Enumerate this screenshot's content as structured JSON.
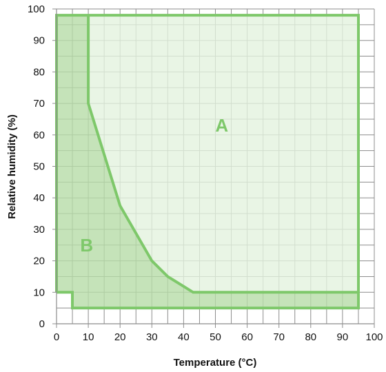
{
  "chart_data": {
    "type": "area",
    "title": "",
    "xlabel": "Temperature (°C)",
    "ylabel": "Relative humidity (%)",
    "xlim": [
      0,
      100
    ],
    "ylim": [
      0,
      100
    ],
    "xticks": [
      0,
      10,
      20,
      30,
      40,
      50,
      60,
      70,
      80,
      90,
      100
    ],
    "yticks": [
      0,
      10,
      20,
      30,
      40,
      50,
      60,
      70,
      80,
      90,
      100
    ],
    "grid": true,
    "minor_grid_step_x": 5,
    "minor_grid_step_y": 5,
    "regions": [
      {
        "name": "A",
        "label": "A",
        "color": "#7ec86a",
        "fill_color": "#e4f3de",
        "outline": [
          [
            0,
            10
          ],
          [
            0,
            98
          ],
          [
            10,
            98
          ],
          [
            10,
            70
          ],
          [
            20,
            37.5
          ],
          [
            30,
            20
          ],
          [
            35,
            15
          ],
          [
            43,
            10
          ],
          [
            95,
            10
          ],
          [
            95,
            98
          ],
          [
            10,
            98
          ]
        ],
        "polygon": [
          [
            10,
            98
          ],
          [
            95,
            98
          ],
          [
            95,
            10
          ],
          [
            43,
            10
          ],
          [
            35,
            15
          ],
          [
            30,
            20
          ],
          [
            20,
            37.5
          ],
          [
            10,
            70
          ]
        ]
      },
      {
        "name": "B",
        "label": "B",
        "color": "#7ec86a",
        "fill_color": "#b7dca8",
        "outline": [
          [
            0,
            10
          ],
          [
            5,
            10
          ],
          [
            5,
            5
          ],
          [
            95,
            5
          ],
          [
            95,
            10
          ]
        ],
        "polygon": [
          [
            0,
            98
          ],
          [
            10,
            98
          ],
          [
            10,
            70
          ],
          [
            20,
            37.5
          ],
          [
            30,
            20
          ],
          [
            35,
            15
          ],
          [
            43,
            10
          ],
          [
            95,
            10
          ],
          [
            95,
            5
          ],
          [
            5,
            5
          ],
          [
            5,
            10
          ],
          [
            0,
            10
          ]
        ]
      }
    ],
    "annotations": [
      {
        "text": "A",
        "x": 52,
        "y": 63
      },
      {
        "text": "B",
        "x": 9.5,
        "y": 25
      }
    ]
  }
}
